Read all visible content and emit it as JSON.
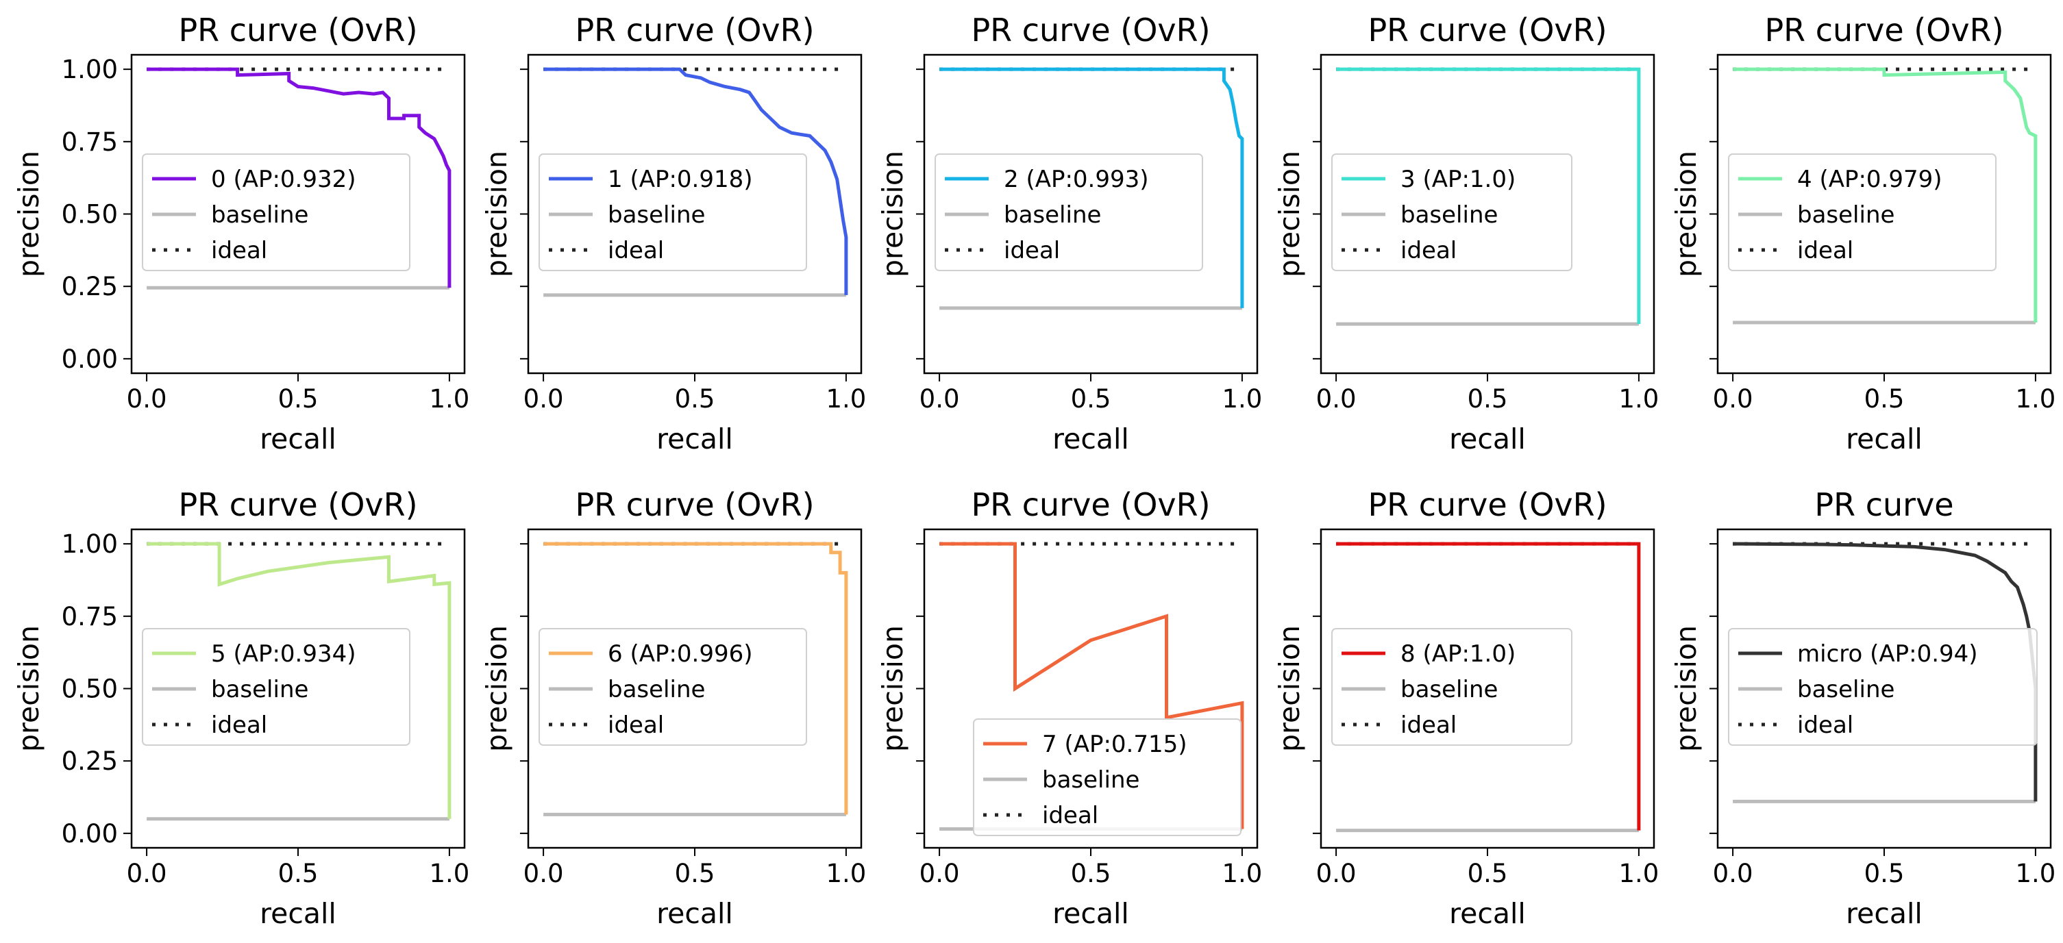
{
  "figure": {
    "rows": 2,
    "cols": 5,
    "sharey": true
  },
  "colors": {
    "baseline": "#bbbbbb",
    "ideal": "#222222",
    "frame": "#000000"
  },
  "chart_data": [
    {
      "type": "line",
      "title": "PR curve (OvR)",
      "xlabel": "recall",
      "ylabel": "precision",
      "xlim": [
        -0.05,
        1.05
      ],
      "ylim": [
        -0.05,
        1.05
      ],
      "xticks": [
        "0.0",
        "0.5",
        "1.0"
      ],
      "yticks": [
        "0.00",
        "0.25",
        "0.50",
        "0.75",
        "1.00"
      ],
      "legend": "center-left",
      "series": [
        {
          "name": "0 (AP:0.932)",
          "color": "#8010e0",
          "style": "solid",
          "x": [
            0,
            0.3,
            0.3,
            0.47,
            0.47,
            0.5,
            0.55,
            0.6,
            0.65,
            0.7,
            0.75,
            0.78,
            0.8,
            0.8,
            0.85,
            0.85,
            0.9,
            0.9,
            0.92,
            0.95,
            0.97,
            0.98,
            0.99,
            1.0,
            1.0
          ],
          "y": [
            1.0,
            1.0,
            0.98,
            0.985,
            0.96,
            0.94,
            0.935,
            0.925,
            0.915,
            0.92,
            0.915,
            0.92,
            0.9,
            0.83,
            0.83,
            0.84,
            0.84,
            0.8,
            0.78,
            0.76,
            0.72,
            0.7,
            0.67,
            0.65,
            0.245
          ]
        },
        {
          "name": "baseline",
          "color": "#bbbbbb",
          "style": "solid",
          "x": [
            0,
            1
          ],
          "y": [
            0.245,
            0.245
          ]
        },
        {
          "name": "ideal",
          "color": "#222222",
          "style": "dotted",
          "x": [
            0,
            1
          ],
          "y": [
            1,
            1
          ]
        }
      ]
    },
    {
      "type": "line",
      "title": "PR curve (OvR)",
      "xlabel": "recall",
      "ylabel": "precision",
      "xlim": [
        -0.05,
        1.05
      ],
      "ylim": [
        -0.05,
        1.05
      ],
      "xticks": [
        "0.0",
        "0.5",
        "1.0"
      ],
      "yticks": [],
      "legend": "center-left",
      "series": [
        {
          "name": "1 (AP:0.918)",
          "color": "#3f5fe8",
          "style": "solid",
          "x": [
            0,
            0.45,
            0.47,
            0.52,
            0.55,
            0.6,
            0.65,
            0.68,
            0.7,
            0.72,
            0.75,
            0.78,
            0.8,
            0.82,
            0.85,
            0.88,
            0.9,
            0.93,
            0.95,
            0.97,
            0.98,
            0.99,
            1.0,
            1.0
          ],
          "y": [
            1.0,
            1.0,
            0.98,
            0.97,
            0.955,
            0.94,
            0.93,
            0.92,
            0.89,
            0.86,
            0.83,
            0.8,
            0.79,
            0.78,
            0.775,
            0.77,
            0.75,
            0.72,
            0.68,
            0.62,
            0.55,
            0.48,
            0.42,
            0.22
          ]
        },
        {
          "name": "baseline",
          "color": "#bbbbbb",
          "style": "solid",
          "x": [
            0,
            1
          ],
          "y": [
            0.22,
            0.22
          ]
        },
        {
          "name": "ideal",
          "color": "#222222",
          "style": "dotted",
          "x": [
            0,
            1
          ],
          "y": [
            1,
            1
          ]
        }
      ]
    },
    {
      "type": "line",
      "title": "PR curve (OvR)",
      "xlabel": "recall",
      "ylabel": "precision",
      "xlim": [
        -0.05,
        1.05
      ],
      "ylim": [
        -0.05,
        1.05
      ],
      "xticks": [
        "0.0",
        "0.5",
        "1.0"
      ],
      "yticks": [],
      "legend": "center-left",
      "series": [
        {
          "name": "2 (AP:0.993)",
          "color": "#16b4e6",
          "style": "solid",
          "x": [
            0,
            0.94,
            0.94,
            0.96,
            0.97,
            0.98,
            0.99,
            1.0,
            1.0
          ],
          "y": [
            1.0,
            1.0,
            0.96,
            0.93,
            0.88,
            0.82,
            0.77,
            0.76,
            0.175
          ]
        },
        {
          "name": "baseline",
          "color": "#bbbbbb",
          "style": "solid",
          "x": [
            0,
            1
          ],
          "y": [
            0.175,
            0.175
          ]
        },
        {
          "name": "ideal",
          "color": "#222222",
          "style": "dotted",
          "x": [
            0,
            1
          ],
          "y": [
            1,
            1
          ]
        }
      ]
    },
    {
      "type": "line",
      "title": "PR curve (OvR)",
      "xlabel": "recall",
      "ylabel": "precision",
      "xlim": [
        -0.05,
        1.05
      ],
      "ylim": [
        -0.05,
        1.05
      ],
      "xticks": [
        "0.0",
        "0.5",
        "1.0"
      ],
      "yticks": [],
      "legend": "center-left",
      "series": [
        {
          "name": "3 (AP:1.0)",
          "color": "#3fe0d0",
          "style": "solid",
          "x": [
            0,
            1.0,
            1.0
          ],
          "y": [
            1.0,
            1.0,
            0.12
          ]
        },
        {
          "name": "baseline",
          "color": "#bbbbbb",
          "style": "solid",
          "x": [
            0,
            1
          ],
          "y": [
            0.12,
            0.12
          ]
        },
        {
          "name": "ideal",
          "color": "#222222",
          "style": "dotted",
          "x": [
            0,
            1
          ],
          "y": [
            1,
            1
          ]
        }
      ]
    },
    {
      "type": "line",
      "title": "PR curve (OvR)",
      "xlabel": "recall",
      "ylabel": "precision",
      "xlim": [
        -0.05,
        1.05
      ],
      "ylim": [
        -0.05,
        1.05
      ],
      "xticks": [
        "0.0",
        "0.5",
        "1.0"
      ],
      "yticks": [],
      "legend": "center-left",
      "series": [
        {
          "name": "4 (AP:0.979)",
          "color": "#7cf0a8",
          "style": "solid",
          "x": [
            0,
            0.5,
            0.5,
            0.9,
            0.9,
            0.93,
            0.95,
            0.96,
            0.97,
            0.98,
            1.0,
            1.0
          ],
          "y": [
            1.0,
            1.0,
            0.98,
            0.99,
            0.96,
            0.93,
            0.9,
            0.85,
            0.8,
            0.78,
            0.77,
            0.125
          ]
        },
        {
          "name": "baseline",
          "color": "#bbbbbb",
          "style": "solid",
          "x": [
            0,
            1
          ],
          "y": [
            0.125,
            0.125
          ]
        },
        {
          "name": "ideal",
          "color": "#222222",
          "style": "dotted",
          "x": [
            0,
            1
          ],
          "y": [
            1,
            1
          ]
        }
      ]
    },
    {
      "type": "line",
      "title": "PR curve (OvR)",
      "xlabel": "recall",
      "ylabel": "precision",
      "xlim": [
        -0.05,
        1.05
      ],
      "ylim": [
        -0.05,
        1.05
      ],
      "xticks": [
        "0.0",
        "0.5",
        "1.0"
      ],
      "yticks": [
        "0.00",
        "0.25",
        "0.50",
        "0.75",
        "1.00"
      ],
      "legend": "center-left",
      "series": [
        {
          "name": "5 (AP:0.934)",
          "color": "#bde98c",
          "style": "solid",
          "x": [
            0,
            0.24,
            0.24,
            0.3,
            0.4,
            0.5,
            0.6,
            0.7,
            0.8,
            0.8,
            0.95,
            0.95,
            1.0,
            1.0
          ],
          "y": [
            1.0,
            1.0,
            0.86,
            0.88,
            0.905,
            0.92,
            0.935,
            0.945,
            0.955,
            0.87,
            0.89,
            0.86,
            0.865,
            0.05
          ]
        },
        {
          "name": "baseline",
          "color": "#bbbbbb",
          "style": "solid",
          "x": [
            0,
            1
          ],
          "y": [
            0.05,
            0.05
          ]
        },
        {
          "name": "ideal",
          "color": "#222222",
          "style": "dotted",
          "x": [
            0,
            1
          ],
          "y": [
            1,
            1
          ]
        }
      ]
    },
    {
      "type": "line",
      "title": "PR curve (OvR)",
      "xlabel": "recall",
      "ylabel": "precision",
      "xlim": [
        -0.05,
        1.05
      ],
      "ylim": [
        -0.05,
        1.05
      ],
      "xticks": [
        "0.0",
        "0.5",
        "1.0"
      ],
      "yticks": [],
      "legend": "center-left",
      "series": [
        {
          "name": "6 (AP:0.996)",
          "color": "#f9b060",
          "style": "solid",
          "x": [
            0,
            0.95,
            0.95,
            0.98,
            0.98,
            1.0,
            1.0
          ],
          "y": [
            1.0,
            1.0,
            0.97,
            0.97,
            0.9,
            0.9,
            0.065
          ]
        },
        {
          "name": "baseline",
          "color": "#bbbbbb",
          "style": "solid",
          "x": [
            0,
            1
          ],
          "y": [
            0.065,
            0.065
          ]
        },
        {
          "name": "ideal",
          "color": "#222222",
          "style": "dotted",
          "x": [
            0,
            1
          ],
          "y": [
            1,
            1
          ]
        }
      ]
    },
    {
      "type": "line",
      "title": "PR curve (OvR)",
      "xlabel": "recall",
      "ylabel": "precision",
      "xlim": [
        -0.05,
        1.05
      ],
      "ylim": [
        -0.05,
        1.05
      ],
      "xticks": [
        "0.0",
        "0.5",
        "1.0"
      ],
      "yticks": [],
      "legend": "lower-center",
      "series": [
        {
          "name": "7 (AP:0.715)",
          "color": "#f0653a",
          "style": "solid",
          "x": [
            0,
            0.25,
            0.25,
            0.5,
            0.75,
            0.75,
            1.0,
            1.0
          ],
          "y": [
            1.0,
            1.0,
            0.5,
            0.667,
            0.75,
            0.4,
            0.45,
            0.015
          ]
        },
        {
          "name": "baseline",
          "color": "#bbbbbb",
          "style": "solid",
          "x": [
            0,
            1
          ],
          "y": [
            0.015,
            0.015
          ]
        },
        {
          "name": "ideal",
          "color": "#222222",
          "style": "dotted",
          "x": [
            0,
            1
          ],
          "y": [
            1,
            1
          ]
        }
      ]
    },
    {
      "type": "line",
      "title": "PR curve (OvR)",
      "xlabel": "recall",
      "ylabel": "precision",
      "xlim": [
        -0.05,
        1.05
      ],
      "ylim": [
        -0.05,
        1.05
      ],
      "xticks": [
        "0.0",
        "0.5",
        "1.0"
      ],
      "yticks": [],
      "legend": "center-left",
      "series": [
        {
          "name": "8 (AP:1.0)",
          "color": "#e01010",
          "style": "solid",
          "x": [
            0,
            1.0,
            1.0
          ],
          "y": [
            1.0,
            1.0,
            0.01
          ]
        },
        {
          "name": "baseline",
          "color": "#bbbbbb",
          "style": "solid",
          "x": [
            0,
            1
          ],
          "y": [
            0.01,
            0.01
          ]
        },
        {
          "name": "ideal",
          "color": "#222222",
          "style": "dotted",
          "x": [
            0,
            1
          ],
          "y": [
            1,
            1
          ]
        }
      ]
    },
    {
      "type": "line",
      "title": "PR curve",
      "xlabel": "recall",
      "ylabel": "precision",
      "xlim": [
        -0.05,
        1.05
      ],
      "ylim": [
        -0.05,
        1.05
      ],
      "xticks": [
        "0.0",
        "0.5",
        "1.0"
      ],
      "yticks": [],
      "legend": "center-left",
      "series": [
        {
          "name": "micro (AP:0.94)",
          "color": "#333333",
          "style": "solid",
          "x": [
            0,
            0.3,
            0.4,
            0.5,
            0.6,
            0.65,
            0.7,
            0.75,
            0.8,
            0.84,
            0.87,
            0.9,
            0.92,
            0.94,
            0.95,
            0.96,
            0.97,
            0.98,
            0.99,
            1.0,
            1.0
          ],
          "y": [
            1.0,
            0.998,
            0.996,
            0.993,
            0.99,
            0.985,
            0.98,
            0.97,
            0.96,
            0.94,
            0.92,
            0.9,
            0.87,
            0.85,
            0.82,
            0.79,
            0.75,
            0.7,
            0.6,
            0.5,
            0.11
          ]
        },
        {
          "name": "baseline",
          "color": "#bbbbbb",
          "style": "solid",
          "x": [
            0,
            1
          ],
          "y": [
            0.11,
            0.11
          ]
        },
        {
          "name": "ideal",
          "color": "#222222",
          "style": "dotted",
          "x": [
            0,
            1
          ],
          "y": [
            1,
            1
          ]
        }
      ]
    }
  ]
}
